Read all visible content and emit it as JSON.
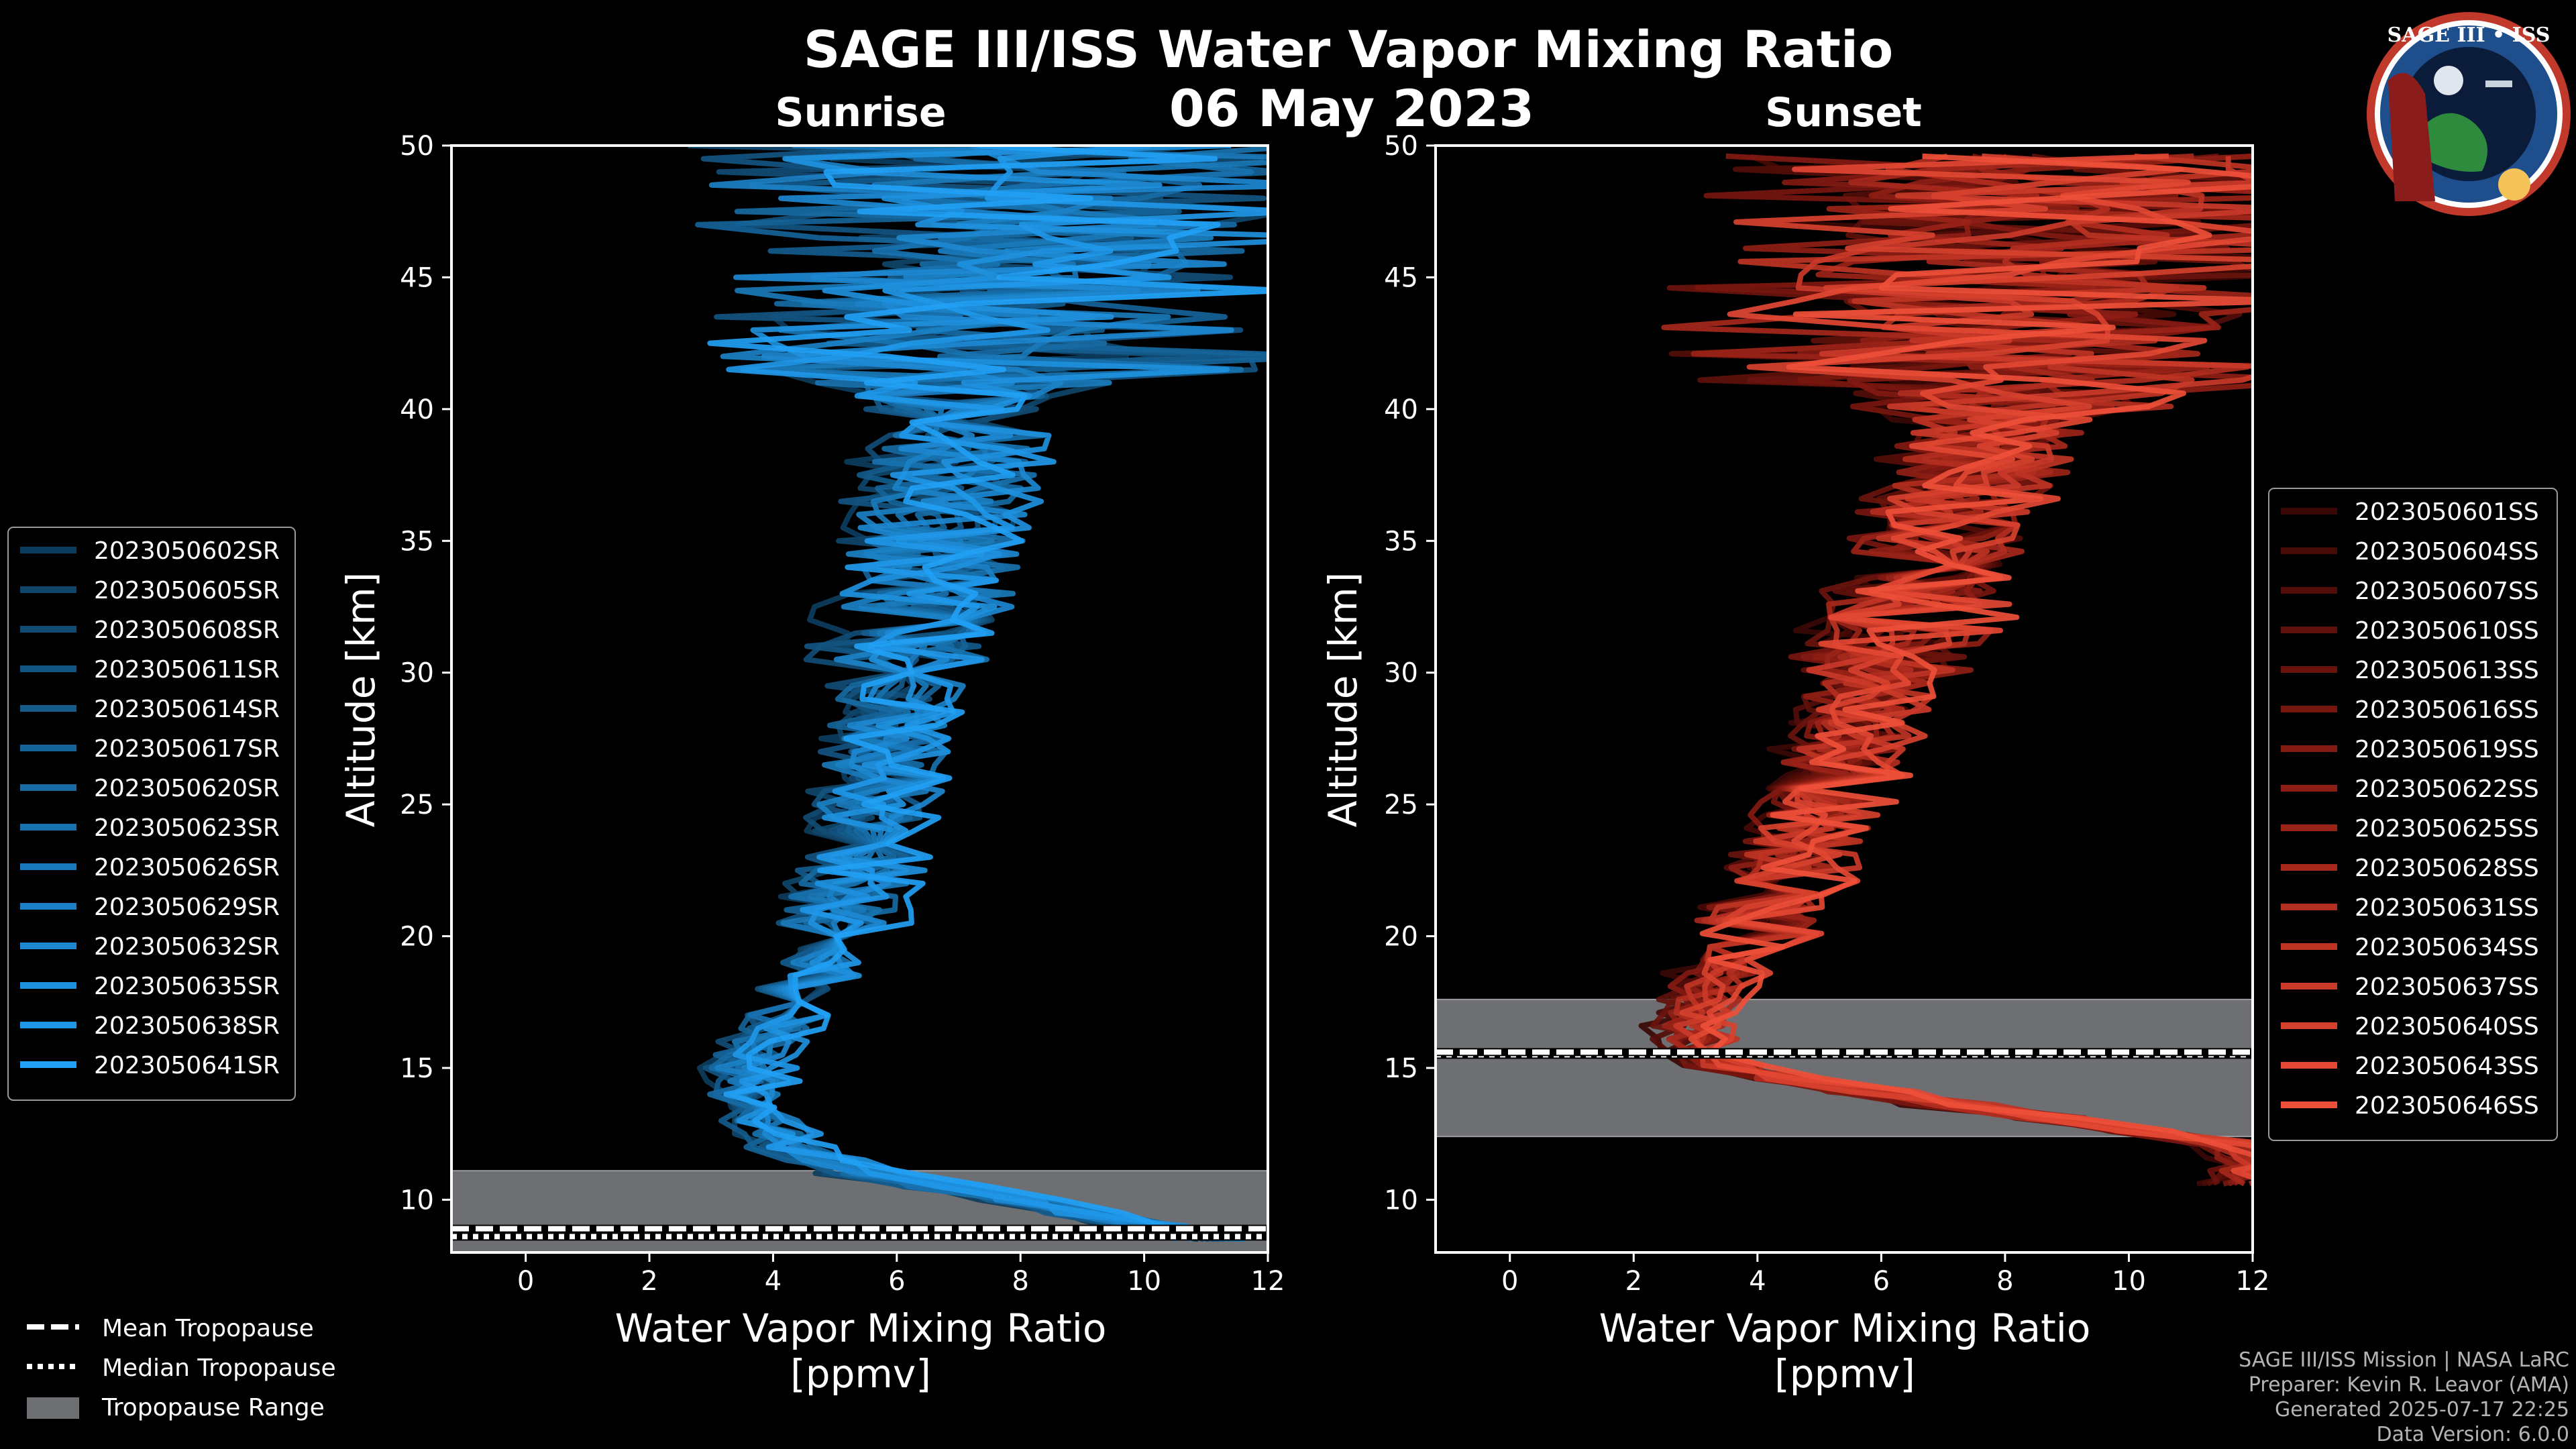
{
  "header": {
    "title": "SAGE III/ISS Water Vapor Mixing Ratio",
    "date": "06 May 2023"
  },
  "logo": {
    "name": "SAGE III • ISS",
    "colors": {
      "ring": "#c0392b",
      "inner": "#1f4e8c"
    }
  },
  "chart_data": [
    {
      "type": "line",
      "panel": "sunrise",
      "title": "Sunrise",
      "xlabel": "Water Vapor Mixing Ratio\n[ppmv]",
      "xlabel_lines": [
        "Water Vapor Mixing Ratio",
        "[ppmv]"
      ],
      "ylabel": "Altitude [km]",
      "xlim": [
        -1.2,
        12
      ],
      "ylim": [
        8,
        50
      ],
      "xticks": [
        0,
        2,
        4,
        6,
        8,
        10,
        12
      ],
      "yticks": [
        10,
        15,
        20,
        25,
        30,
        35,
        40,
        45,
        50
      ],
      "color": "#1f8fd8",
      "series_names": [
        "2023050602SR",
        "2023050605SR",
        "2023050608SR",
        "2023050611SR",
        "2023050614SR",
        "2023050617SR",
        "2023050620SR",
        "2023050623SR",
        "2023050626SR",
        "2023050629SR",
        "2023050632SR",
        "2023050635SR",
        "2023050638SR",
        "2023050641SR"
      ],
      "series_colors": [
        "#0d3d5e",
        "#0f4569",
        "#114c75",
        "#125481",
        "#145b8c",
        "#156398",
        "#176aa3",
        "#1872af",
        "#1a79ba",
        "#1b81c6",
        "#1d88d1",
        "#1e90dd",
        "#1f97e8",
        "#219ff4"
      ],
      "mean_profile": {
        "altitude": [
          8.5,
          10,
          11,
          12,
          13,
          14,
          15,
          16,
          17,
          18,
          19,
          20,
          21,
          22,
          23,
          24,
          25,
          26,
          27,
          28,
          29,
          30,
          31,
          32,
          33,
          34,
          35,
          36,
          37,
          38,
          39,
          40,
          41,
          42,
          43,
          44,
          45,
          46,
          47,
          48,
          49,
          50
        ],
        "value": [
          11.0,
          8.0,
          5.5,
          4.2,
          3.8,
          3.6,
          3.6,
          3.8,
          4.2,
          4.5,
          4.8,
          5.0,
          5.1,
          5.3,
          5.5,
          5.5,
          5.6,
          5.7,
          5.8,
          5.9,
          6.0,
          6.1,
          6.2,
          6.3,
          6.4,
          6.5,
          6.6,
          6.7,
          6.8,
          6.9,
          7.0,
          7.1,
          7.3,
          7.5,
          7.6,
          7.8,
          8.0,
          8.0,
          8.0,
          8.0,
          8.0,
          8.0
        ]
      },
      "tropopause": {
        "mean_km": 8.9,
        "median_km": 8.6,
        "range_km": [
          8.0,
          11.1
        ]
      }
    },
    {
      "type": "line",
      "panel": "sunset",
      "title": "Sunset",
      "xlabel": "Water Vapor Mixing Ratio\n[ppmv]",
      "xlabel_lines": [
        "Water Vapor Mixing Ratio",
        "[ppmv]"
      ],
      "ylabel": "Altitude [km]",
      "xlim": [
        -1.2,
        12
      ],
      "ylim": [
        8,
        50
      ],
      "xticks": [
        0,
        2,
        4,
        6,
        8,
        10,
        12
      ],
      "yticks": [
        10,
        15,
        20,
        25,
        30,
        35,
        40,
        45,
        50
      ],
      "color": "#e8503f",
      "series_names": [
        "2023050601SS",
        "2023050604SS",
        "2023050607SS",
        "2023050610SS",
        "2023050613SS",
        "2023050616SS",
        "2023050619SS",
        "2023050622SS",
        "2023050625SS",
        "2023050628SS",
        "2023050631SS",
        "2023050634SS",
        "2023050637SS",
        "2023050640SS",
        "2023050643SS",
        "2023050646SS"
      ],
      "series_colors": [
        "#3a0805",
        "#460a07",
        "#520d09",
        "#5e100b",
        "#6a130d",
        "#76160f",
        "#821a12",
        "#8e1e15",
        "#9a2318",
        "#a6281c",
        "#b22e20",
        "#be3424",
        "#ca3a29",
        "#d6412e",
        "#e24833",
        "#ee4f38"
      ],
      "mean_profile": {
        "altitude": [
          10.6,
          12,
          13,
          14,
          15,
          16,
          17,
          18,
          19,
          20,
          21,
          22,
          23,
          24,
          25,
          26,
          27,
          28,
          29,
          30,
          31,
          32,
          33,
          34,
          35,
          36,
          37,
          38,
          39,
          40,
          41,
          42,
          43,
          44,
          45,
          46,
          47,
          48,
          49,
          50
        ],
        "value": [
          12.0,
          12.0,
          9.0,
          6.0,
          3.5,
          3.0,
          3.0,
          3.2,
          3.5,
          3.8,
          4.1,
          4.4,
          4.6,
          4.8,
          5.0,
          5.2,
          5.4,
          5.6,
          5.8,
          6.0,
          6.2,
          6.4,
          6.6,
          6.8,
          7.0,
          7.2,
          7.4,
          7.6,
          7.8,
          8.0,
          8.1,
          8.2,
          8.3,
          8.4,
          8.5,
          8.6,
          8.7,
          8.8,
          8.9,
          9.0
        ]
      },
      "tropopause": {
        "mean_km": 15.6,
        "median_km": 15.5,
        "range_km": [
          12.4,
          17.6
        ]
      }
    }
  ],
  "legend_bottom": {
    "mean": "Mean Tropopause",
    "median": "Median Tropopause",
    "range": "Tropopause Range"
  },
  "footer": {
    "line1": "SAGE III/ISS Mission | NASA LaRC",
    "line2": "Preparer: Kevin R. Leavor (AMA)",
    "line3": "Generated 2025-07-17 22:25",
    "line4": "Data Version: 6.0.0"
  }
}
